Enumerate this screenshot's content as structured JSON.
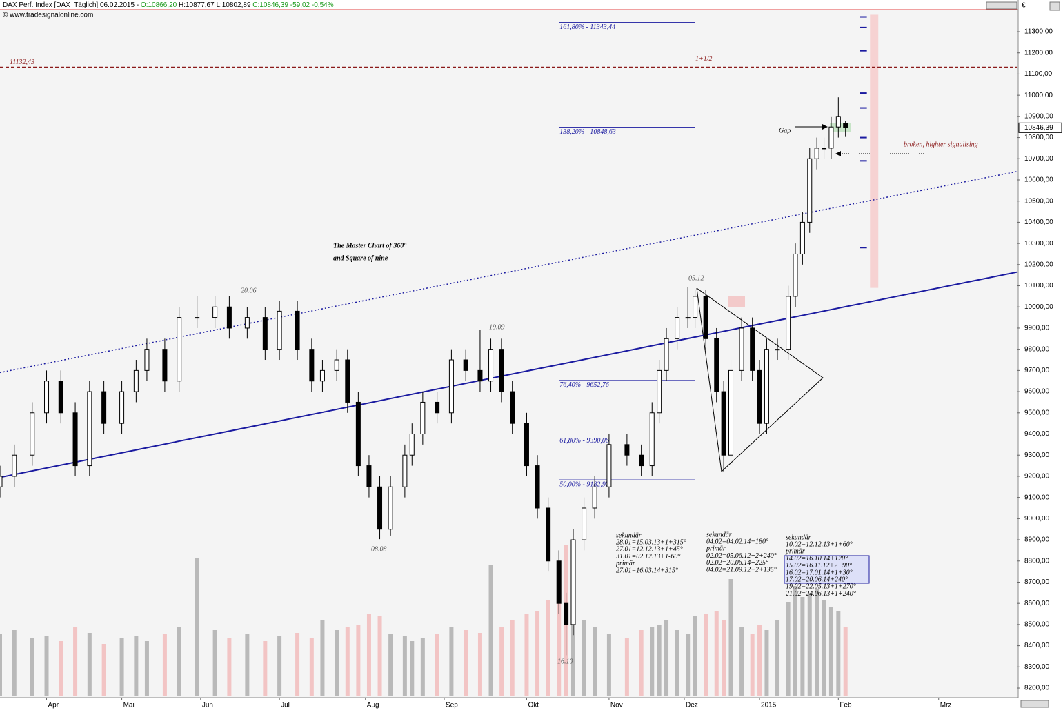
{
  "chart_data": {
    "type": "candlestick",
    "header": [
      {
        "text": "DAX Perf. Index [DAX  Täglich] 06.02.2015 - ",
        "color": "#000000"
      },
      {
        "text": "O:10866,20",
        "color": "#1a9a1a"
      },
      {
        "text": " H:10877,67 L:10802,89 ",
        "color": "#000000"
      },
      {
        "text": "C:10846,39 -59,02 -0,54%",
        "color": "#1a9a1a"
      }
    ],
    "source": "© www.tradesignalonline.com",
    "currency": "€",
    "title_lines": [
      "The Master Chart of 360°",
      "and Square of nine"
    ],
    "x": [
      0,
      4,
      9,
      13,
      17,
      21,
      25,
      29,
      34,
      38,
      41,
      46,
      50,
      55,
      60,
      64,
      69,
      74,
      78,
      83,
      87,
      90,
      94,
      97,
      100,
      103,
      106,
      109,
      113,
      115,
      118,
      122,
      126,
      130,
      134,
      137,
      140,
      143,
      147,
      150,
      153,
      156,
      158,
      160,
      163,
      166,
      170,
      175,
      179,
      182,
      184,
      186,
      189,
      192,
      194,
      197,
      200,
      202,
      204,
      207,
      210,
      212,
      214,
      217,
      220,
      222,
      224,
      226,
      228,
      230,
      232,
      234,
      236
    ],
    "open": [
      9150,
      9200,
      9300,
      9500,
      9650,
      9500,
      9250,
      9600,
      9450,
      9600,
      9700,
      9800,
      9650,
      9950,
      9950,
      10000,
      9900,
      9950,
      9800,
      9980,
      9800,
      9650,
      9700,
      9750,
      9550,
      9250,
      9150,
      8950,
      9150,
      9300,
      9400,
      9550,
      9500,
      9750,
      9700,
      9650,
      9800,
      9600,
      9450,
      9250,
      9050,
      8800,
      8600,
      8500,
      8900,
      9050,
      9150,
      9350,
      9300,
      9250,
      9500,
      9700,
      9850,
      9950,
      9950,
      10050,
      9850,
      9600,
      9300,
      9700,
      9900,
      9700,
      9450,
      9800,
      9800,
      10050,
      10250,
      10400,
      10700,
      10750,
      10750,
      10850,
      10866.2
    ],
    "high": [
      9250,
      9350,
      9550,
      9700,
      9700,
      9550,
      9650,
      9650,
      9650,
      9750,
      9850,
      9850,
      10000,
      10050,
      10050,
      10050,
      10000,
      10000,
      10030,
      10030,
      9850,
      9750,
      9800,
      9800,
      9600,
      9300,
      9200,
      9200,
      9350,
      9450,
      9600,
      9600,
      9800,
      9800,
      9891,
      9850,
      9850,
      9650,
      9500,
      9300,
      9100,
      8850,
      8650,
      8950,
      9100,
      9200,
      9400,
      9400,
      9350,
      9550,
      9750,
      9900,
      10000,
      10093,
      10080,
      10080,
      9900,
      9650,
      9750,
      9950,
      9950,
      9750,
      9850,
      9850,
      10100,
      10300,
      10450,
      10750,
      10800,
      10800,
      10900,
      10990,
      10877.67
    ],
    "low": [
      9100,
      9150,
      9250,
      9450,
      9450,
      9200,
      9200,
      9400,
      9400,
      9550,
      9650,
      9600,
      9600,
      9900,
      9900,
      9850,
      9850,
      9750,
      9750,
      9750,
      9600,
      9600,
      9650,
      9500,
      9200,
      9100,
      8903,
      8920,
      9100,
      9250,
      9350,
      9450,
      9450,
      9650,
      9600,
      9600,
      9550,
      9400,
      9200,
      9000,
      8750,
      8550,
      8355,
      8450,
      8850,
      9000,
      9100,
      9250,
      9200,
      9200,
      9450,
      9650,
      9800,
      9900,
      9900,
      9800,
      9550,
      9220,
      9250,
      9650,
      9650,
      9400,
      9400,
      9750,
      9750,
      10000,
      10200,
      10350,
      10650,
      10700,
      10700,
      10800,
      10802.89
    ],
    "close": [
      9200,
      9300,
      9500,
      9650,
      9500,
      9250,
      9600,
      9450,
      9600,
      9700,
      9800,
      9650,
      9950,
      9950,
      10000,
      9900,
      9950,
      9800,
      9980,
      9800,
      9650,
      9700,
      9750,
      9550,
      9250,
      9150,
      8950,
      9150,
      9300,
      9400,
      9550,
      9500,
      9750,
      9700,
      9650,
      9800,
      9600,
      9450,
      9250,
      9050,
      8800,
      8600,
      8500,
      8900,
      9050,
      9150,
      9350,
      9300,
      9250,
      9500,
      9700,
      9850,
      9950,
      9950,
      10050,
      9850,
      9600,
      9300,
      9700,
      9900,
      9700,
      9450,
      9800,
      9800,
      10050,
      10250,
      10400,
      10700,
      10750,
      10750,
      10850,
      10900,
      10846.39
    ],
    "volume": [
      45,
      48,
      42,
      44,
      40,
      50,
      46,
      38,
      42,
      44,
      40,
      45,
      50,
      100,
      48,
      42,
      45,
      40,
      44,
      46,
      42,
      55,
      48,
      50,
      52,
      60,
      58,
      45,
      44,
      40,
      42,
      45,
      50,
      48,
      46,
      95,
      50,
      55,
      60,
      62,
      70,
      80,
      110,
      60,
      55,
      50,
      45,
      42,
      48,
      50,
      52,
      55,
      48,
      45,
      58,
      60,
      62,
      55,
      85,
      50,
      45,
      52,
      48,
      55,
      68,
      80,
      72,
      75,
      78,
      70,
      65,
      62,
      50
    ],
    "up_color": "#ffffff",
    "down_color": "#000000",
    "volume_up_color": "#b9b9b9",
    "volume_down_color": "#f2c4c4",
    "xlim": [
      0,
      284
    ],
    "ylim": [
      8161,
      11401
    ],
    "xticks": [
      {
        "value": 13,
        "label": "Apr"
      },
      {
        "value": 34,
        "label": "Mai"
      },
      {
        "value": 56,
        "label": "Jun"
      },
      {
        "value": 78,
        "label": "Jul"
      },
      {
        "value": 102,
        "label": "Aug"
      },
      {
        "value": 124,
        "label": "Sep"
      },
      {
        "value": 147,
        "label": "Okt"
      },
      {
        "value": 170,
        "label": "Nov"
      },
      {
        "value": 191,
        "label": "Dez"
      },
      {
        "value": 212,
        "label": "2015"
      },
      {
        "value": 234,
        "label": "Feb"
      },
      {
        "value": 262,
        "label": "Mrz"
      }
    ],
    "yticks": [
      {
        "value": 8200,
        "label": "8200,00"
      },
      {
        "value": 8300,
        "label": "8300,00"
      },
      {
        "value": 8400,
        "label": "8400,00"
      },
      {
        "value": 8500,
        "label": "8500,00"
      },
      {
        "value": 8600,
        "label": "8600,00"
      },
      {
        "value": 8700,
        "label": "8700,00"
      },
      {
        "value": 8800,
        "label": "8800,00"
      },
      {
        "value": 8900,
        "label": "8900,00"
      },
      {
        "value": 9000,
        "label": "9000,00"
      },
      {
        "value": 9100,
        "label": "9100,00"
      },
      {
        "value": 9200,
        "label": "9200,00"
      },
      {
        "value": 9300,
        "label": "9300,00"
      },
      {
        "value": 9400,
        "label": "9400,00"
      },
      {
        "value": 9500,
        "label": "9500,00"
      },
      {
        "value": 9600,
        "label": "9600,00"
      },
      {
        "value": 9700,
        "label": "9700,00"
      },
      {
        "value": 9800,
        "label": "9800,00"
      },
      {
        "value": 9900,
        "label": "9900,00"
      },
      {
        "value": 10000,
        "label": "10000,00"
      },
      {
        "value": 10100,
        "label": "10100,00"
      },
      {
        "value": 10200,
        "label": "10200,00"
      },
      {
        "value": 10300,
        "label": "10300,00"
      },
      {
        "value": 10400,
        "label": "10400,00"
      },
      {
        "value": 10500,
        "label": "10500,00"
      },
      {
        "value": 10600,
        "label": "10600,00"
      },
      {
        "value": 10700,
        "label": "10700,00"
      },
      {
        "value": 10800,
        "label": "10800,00"
      },
      {
        "value": 10900,
        "label": "10900,00"
      },
      {
        "value": 11000,
        "label": "11000,00"
      },
      {
        "value": 11100,
        "label": "11100,00"
      },
      {
        "value": 11200,
        "label": "11200,00"
      },
      {
        "value": 11300,
        "label": "11300,00"
      }
    ],
    "last_price": {
      "value": 10846.39,
      "label": "10846,39"
    },
    "resistance": {
      "value": 11132.43,
      "label": "11132,43",
      "note": "1+1/2",
      "color": "#8b1a1a"
    },
    "fib_levels": [
      {
        "value": 11343.44,
        "label": "161,80% - 11343,44"
      },
      {
        "value": 10848.63,
        "label": "138,20% - 10848,63"
      },
      {
        "value": 9652.76,
        "label": "76,40% - 9652,76"
      },
      {
        "value": 9390.06,
        "label": "61,80% - 9390,06"
      },
      {
        "value": 9182.97,
        "label": "50,00% - 9182,97"
      }
    ],
    "fib_x": [
      156,
      194
    ],
    "fib_color": "#1a1aa0",
    "trendlines": [
      {
        "x": [
          0,
          284
        ],
        "y": [
          9195,
          10165
        ],
        "style": "solid",
        "color": "#1a1aa0"
      },
      {
        "x": [
          0,
          284
        ],
        "y": [
          9690,
          10640
        ],
        "style": "dotted",
        "color": "#1a1aa0"
      }
    ],
    "target_zone": {
      "x": 244,
      "low": 10090,
      "high": 11380,
      "color": "#f6d2d2"
    },
    "square_of_nine_levels": {
      "x": 241,
      "values": [
        11370,
        11320,
        11210,
        11010,
        10940,
        10800,
        10690,
        10280
      ],
      "color": "#1a1aa0"
    },
    "date_labels": [
      "20.06",
      "19.09",
      "08.08",
      "16.10",
      "05.12"
    ],
    "notes": [
      "Gap",
      "broken, highter signalising"
    ],
    "blocks": [
      {
        "lines": [
          "sekundär",
          "28.01=15.03.13+1+315°",
          "27.01=12.12.13+1+45°",
          "31.01=02.12.13+1-60°",
          "primär",
          "27.01=16.03.14+315°"
        ]
      },
      {
        "lines": [
          "sekundär",
          "04.02=04.02.14+180°",
          "primär",
          "02.02=05.06.12+2+240°",
          "02.02=20.06.14+225°",
          "04.02=21.09.12+2+135°"
        ]
      },
      {
        "lines": [
          "sekundär",
          "10.02=12.12.13+1+60°",
          "primär",
          "14.02=16.10.14+120°",
          "15.02=16.11.12+2+90°",
          "16.02=17.01.14+1+30°",
          "17.02=20.06.14+240°",
          "19.02=22.05.13+1+270°",
          "21.02=24.06.13+1+240°"
        ]
      }
    ]
  }
}
